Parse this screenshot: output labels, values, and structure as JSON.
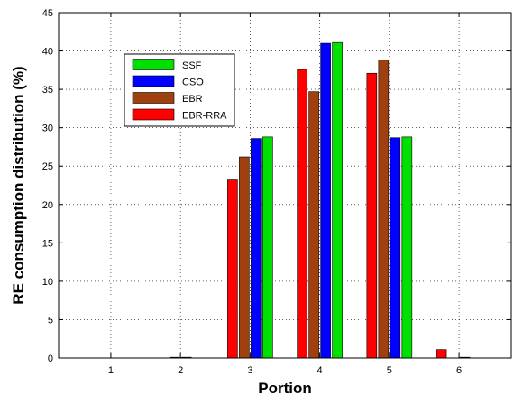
{
  "chart_data": {
    "type": "bar",
    "title": "",
    "xlabel": "Portion",
    "ylabel": "RE consumption distribution (%)",
    "categories": [
      "1",
      "2",
      "3",
      "4",
      "5",
      "6"
    ],
    "ylim": [
      0,
      45
    ],
    "yticks": [
      0,
      5,
      10,
      15,
      20,
      25,
      30,
      35,
      40,
      45
    ],
    "grid": true,
    "legend_position": "top-left",
    "series": [
      {
        "name": "EBR-RRA",
        "color": "#ff0000",
        "values": [
          0,
          0,
          23.2,
          37.6,
          37.1,
          1.1
        ]
      },
      {
        "name": "EBR",
        "color": "#a0400f",
        "values": [
          0,
          0.1,
          26.2,
          34.7,
          38.8,
          0
        ]
      },
      {
        "name": "CSO",
        "color": "#0000ff",
        "values": [
          0,
          0.1,
          28.6,
          41.0,
          28.7,
          0.1
        ]
      },
      {
        "name": "SSF",
        "color": "#00e000",
        "values": [
          0,
          0,
          28.8,
          41.1,
          28.8,
          0
        ]
      }
    ],
    "legend_order": [
      "SSF",
      "CSO",
      "EBR",
      "EBR-RRA"
    ]
  }
}
